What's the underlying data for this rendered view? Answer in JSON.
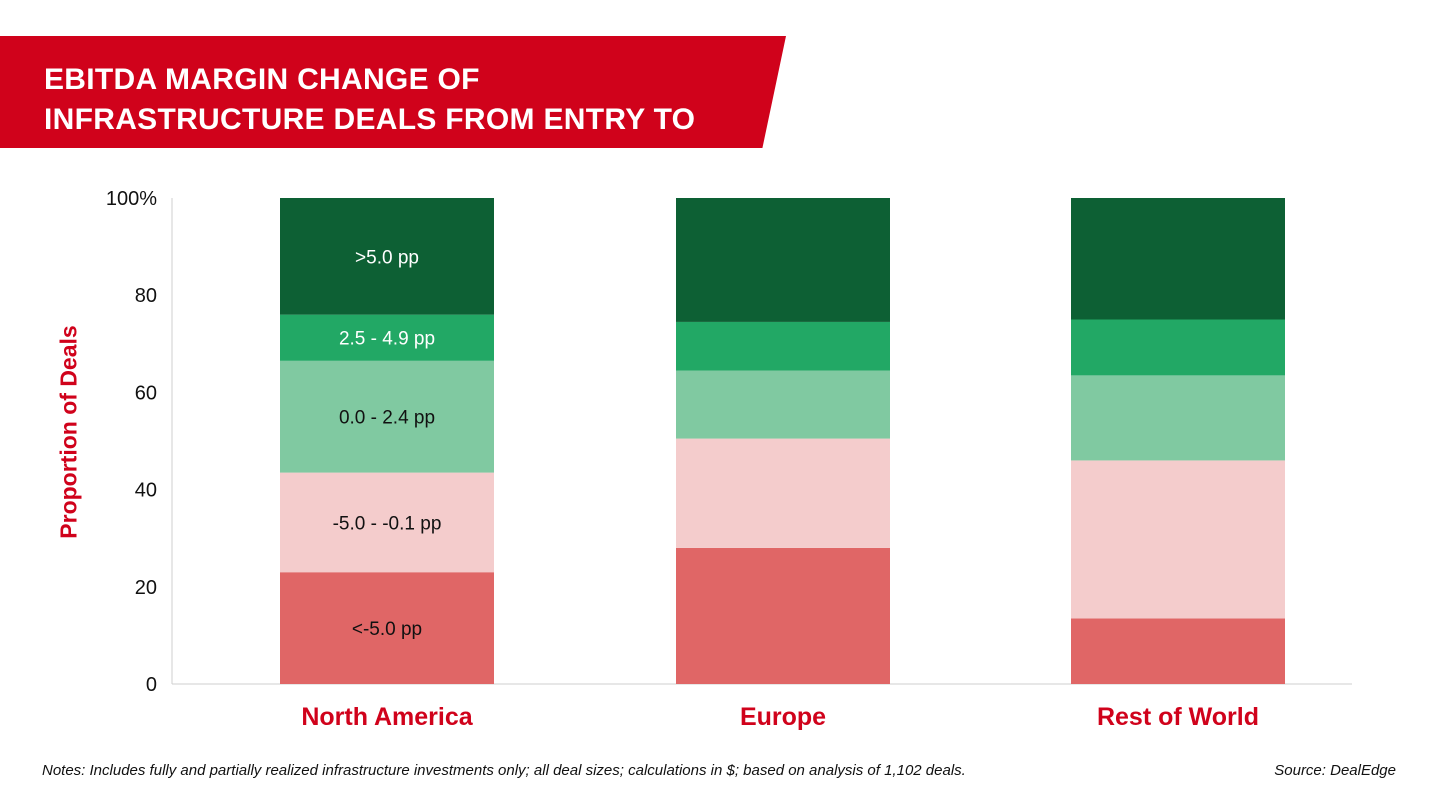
{
  "title": "EBITDA MARGIN CHANGE OF INFRASTRUCTURE DEALS FROM ENTRY TO EXIT BY REGION",
  "colors": {
    "brand_red": "#d0021b",
    "segments": [
      "#e06666",
      "#f4cccc",
      "#80c9a1",
      "#22a865",
      "#0d6034"
    ],
    "segment_text": [
      "#111111",
      "#111111",
      "#111111",
      "#ffffff",
      "#ffffff"
    ]
  },
  "chart_data": {
    "type": "bar",
    "stacked": true,
    "categories": [
      "North America",
      "Europe",
      "Rest of World"
    ],
    "series": [
      {
        "name": "<-5.0 pp",
        "values": [
          23,
          28,
          13.5
        ]
      },
      {
        "name": "-5.0 - -0.1 pp",
        "values": [
          20.5,
          22.5,
          32.5
        ]
      },
      {
        "name": "0.0 - 2.4 pp",
        "values": [
          23,
          14,
          17.5
        ]
      },
      {
        "name": "2.5 - 4.9 pp",
        "values": [
          9.5,
          10,
          11.5
        ]
      },
      {
        "name": ">5.0 pp",
        "values": [
          24,
          25.5,
          25
        ]
      }
    ],
    "segment_labels_on_category": 0,
    "ylabel": "Proportion of Deals",
    "ylim": [
      0,
      100
    ],
    "yticks": [
      "0",
      "20",
      "40",
      "60",
      "80",
      "100%"
    ],
    "grid": false
  },
  "notes": "Notes: Includes fully and partially realized infrastructure investments only; all deal sizes; calculations in $; based on analysis of 1,102 deals.",
  "source": "Source: DealEdge"
}
